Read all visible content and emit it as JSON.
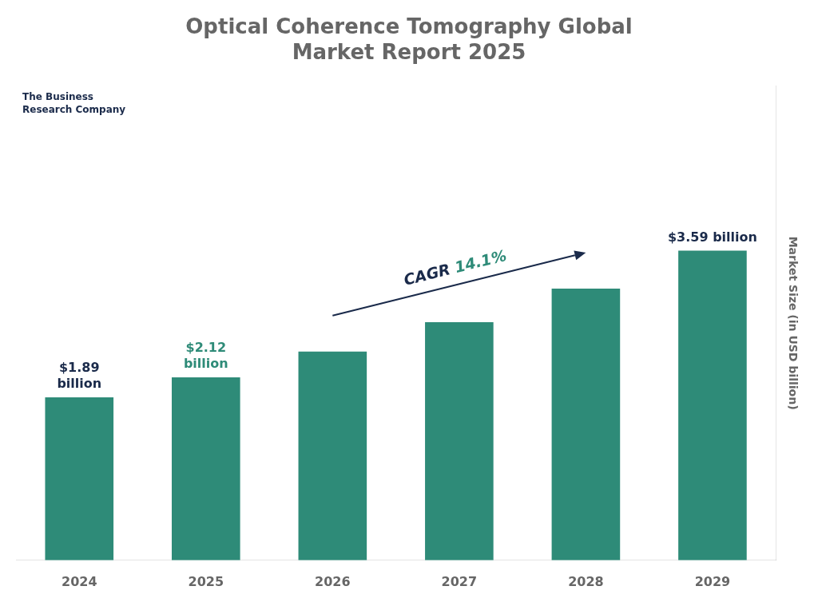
{
  "chart_data": {
    "type": "bar",
    "title": "Optical Coherence Tomography Global\nMarket Report 2025",
    "categories": [
      "2024",
      "2025",
      "2026",
      "2027",
      "2028",
      "2029"
    ],
    "values": [
      1.89,
      2.12,
      2.42,
      2.76,
      3.15,
      3.59
    ],
    "color": "#2e8b78",
    "ylim": [
      0,
      5.5
    ],
    "ylabel": "Market Size (in USD billion)",
    "grid": false,
    "tick_labels": "x",
    "annotations": [
      {
        "text": "$1.89\nbillion",
        "category": "2024",
        "color": "#1a2a4a"
      },
      {
        "text": "$2.12\nbillion",
        "category": "2025",
        "color": "#2e8b78"
      },
      {
        "text": "$3.59 billion",
        "category": "2029",
        "color": "#1a2a4a"
      },
      {
        "parts": [
          {
            "text": "CAGR",
            "color": "#1a2a4a"
          },
          {
            "text": "14.1%",
            "color": "#2e8b78"
          }
        ]
      },
      {
        "text": "The Business\nResearch Company",
        "color": "#1a2a4a"
      }
    ]
  }
}
